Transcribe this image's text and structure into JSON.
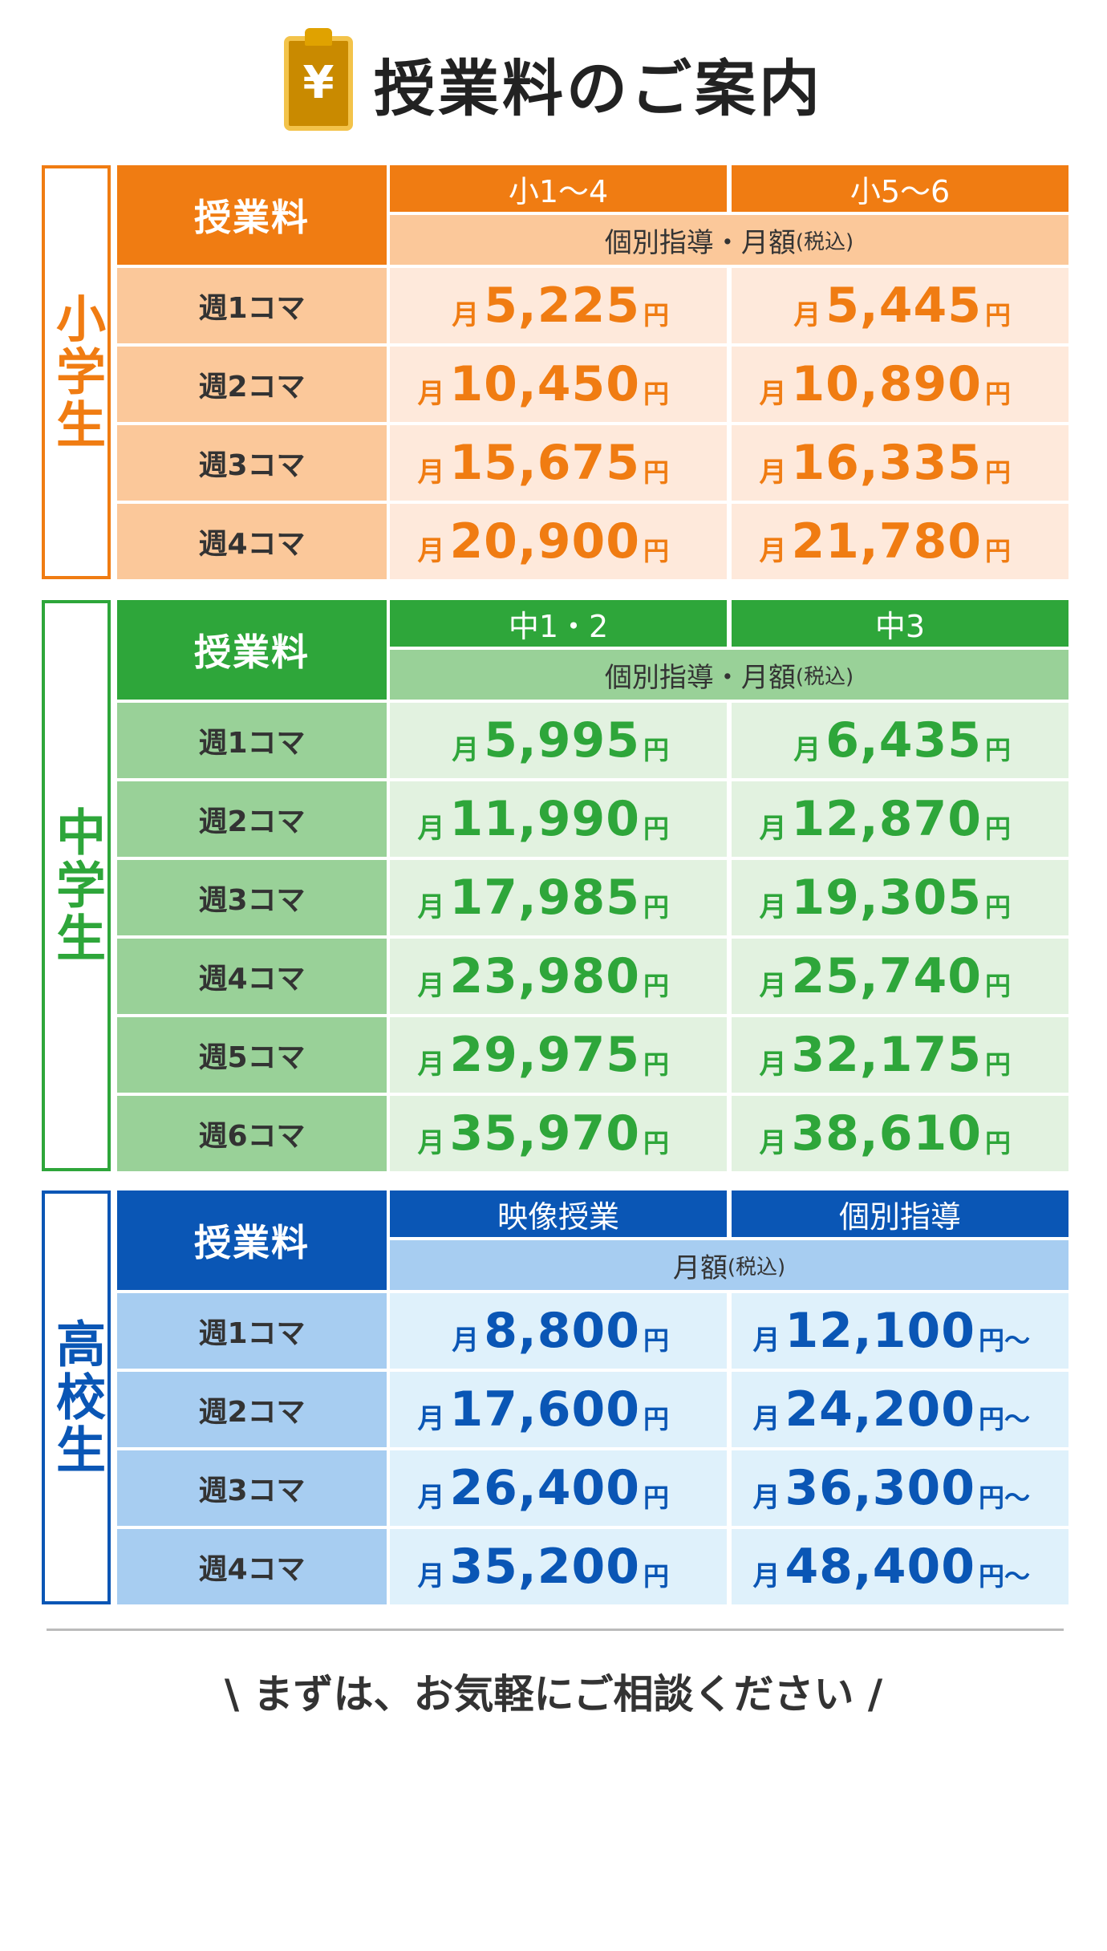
{
  "header": {
    "title": "授業料のご案内",
    "icon": "yen-clipboard-icon",
    "icon_symbol": "¥"
  },
  "sections": [
    {
      "label": "小学生",
      "fee_label": "授業料",
      "columns": [
        "小1〜4",
        "小5〜6"
      ],
      "subheader": "個別指導・月額",
      "subheader_note": "(税込)",
      "rows": [
        {
          "label": "週1コマ",
          "prices": [
            "5,225",
            "5,445"
          ]
        },
        {
          "label": "週2コマ",
          "prices": [
            "10,450",
            "10,890"
          ]
        },
        {
          "label": "週3コマ",
          "prices": [
            "15,675",
            "16,335"
          ]
        },
        {
          "label": "週4コマ",
          "prices": [
            "20,900",
            "21,780"
          ]
        }
      ],
      "colors": {
        "accent": "#f07c12",
        "label_bg": "#fbc89a",
        "sub_bg": "#fbc89a",
        "price_bg": "#fee9db",
        "price_text": "#f07c12"
      }
    },
    {
      "label": "中学生",
      "fee_label": "授業料",
      "columns": [
        "中1・2",
        "中3"
      ],
      "subheader": "個別指導・月額",
      "subheader_note": "(税込)",
      "rows": [
        {
          "label": "週1コマ",
          "prices": [
            "5,995",
            "6,435"
          ]
        },
        {
          "label": "週2コマ",
          "prices": [
            "11,990",
            "12,870"
          ]
        },
        {
          "label": "週3コマ",
          "prices": [
            "17,985",
            "19,305"
          ]
        },
        {
          "label": "週4コマ",
          "prices": [
            "23,980",
            "25,740"
          ]
        },
        {
          "label": "週5コマ",
          "prices": [
            "29,975",
            "32,175"
          ]
        },
        {
          "label": "週6コマ",
          "prices": [
            "35,970",
            "38,610"
          ]
        }
      ],
      "colors": {
        "accent": "#2ea63a",
        "label_bg": "#99d198",
        "sub_bg": "#99d198",
        "price_bg": "#e2f2e0",
        "price_text": "#2ea63a"
      }
    },
    {
      "label": "高校生",
      "fee_label": "授業料",
      "columns": [
        "映像授業",
        "個別指導"
      ],
      "subheader": "月額",
      "subheader_note": "(税込)",
      "rows": [
        {
          "label": "週1コマ",
          "prices": [
            "8,800",
            "12,100"
          ]
        },
        {
          "label": "週2コマ",
          "prices": [
            "17,600",
            "24,200"
          ]
        },
        {
          "label": "週3コマ",
          "prices": [
            "26,400",
            "36,300"
          ]
        },
        {
          "label": "週4コマ",
          "prices": [
            "35,200",
            "48,400"
          ]
        }
      ],
      "price_suffixes": [
        "円",
        "円〜"
      ],
      "colors": {
        "accent": "#0a56b5",
        "label_bg": "#a7cdf1",
        "sub_bg": "#a7cdf1",
        "price_bg": "#dff1fb",
        "price_text": "#0a56b5"
      }
    }
  ],
  "price_prefix": "月",
  "price_suffix": "円",
  "cta": "\\ まずは、お気軽にご相談ください /"
}
